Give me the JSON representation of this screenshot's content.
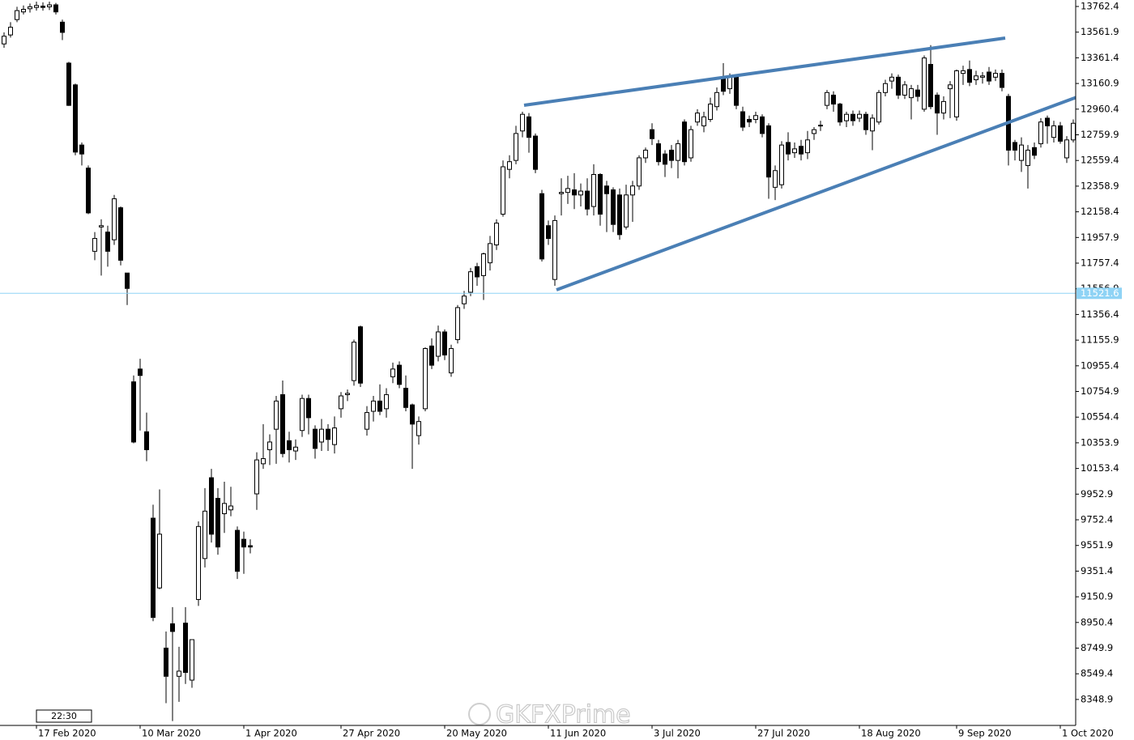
{
  "chart_data": {
    "type": "candlestick",
    "categories": [
      null,
      null,
      null,
      null,
      null,
      "17 Feb 2020",
      null,
      null,
      null,
      null,
      null,
      null,
      null,
      null,
      null,
      null,
      null,
      null,
      null,
      null,
      null,
      "10 Mar 2020",
      null,
      null,
      null,
      null,
      null,
      null,
      null,
      null,
      null,
      null,
      null,
      null,
      null,
      null,
      null,
      "1 Apr 2020",
      null,
      null,
      null,
      null,
      null,
      null,
      null,
      null,
      null,
      null,
      null,
      null,
      null,
      null,
      "27 Apr 2020",
      null,
      null,
      null,
      null,
      null,
      null,
      null,
      null,
      null,
      null,
      null,
      null,
      null,
      null,
      null,
      "20 May 2020",
      null,
      null,
      null,
      null,
      null,
      null,
      null,
      null,
      null,
      null,
      null,
      null,
      null,
      null,
      null,
      "11 Jun 2020",
      null,
      null,
      null,
      null,
      null,
      null,
      null,
      null,
      null,
      null,
      null,
      null,
      null,
      null,
      null,
      "3 Jul 2020",
      null,
      null,
      null,
      null,
      null,
      null,
      null,
      null,
      null,
      null,
      null,
      null,
      null,
      null,
      null,
      "27 Jul 2020",
      null,
      null,
      null,
      null,
      null,
      null,
      null,
      null,
      null,
      null,
      null,
      null,
      null,
      null,
      null,
      "18 Aug 2020",
      null,
      null,
      null,
      null,
      null,
      null,
      null,
      null,
      null,
      null,
      null,
      null,
      null,
      null,
      "9 Sep 2020",
      null,
      null,
      null,
      null,
      null,
      null,
      null,
      null,
      null,
      null,
      null,
      null,
      null,
      null,
      null,
      "1 Oct 2020",
      null,
      null
    ],
    "open": [
      13470,
      13540,
      13660,
      13720,
      13745,
      13755,
      13765,
      13760,
      13775,
      13640,
      13320,
      13150,
      12680,
      12500,
      11850,
      12040,
      12000,
      11940,
      12190,
      11680,
      10830,
      10930,
      10440,
      9765,
      9220,
      8750,
      8940,
      8530,
      8945,
      8500,
      9130,
      9450,
      10081,
      9920,
      9800,
      9830,
      9670,
      9600,
      9550,
      9955,
      10190,
      10300,
      10460,
      10730,
      10370,
      10290,
      10450,
      10700,
      10460,
      10360,
      10460,
      10340,
      10620,
      10730,
      10840,
      11260,
      10460,
      10600,
      10680,
      10620,
      10870,
      10960,
      10780,
      10650,
      10410,
      10620,
      11110,
      11030,
      11220,
      10900,
      11160,
      11440,
      11530,
      11730,
      11660,
      11760,
      11900,
      12140,
      12490,
      12560,
      12790,
      12900,
      12750,
      12300,
      12050,
      11630,
      12300,
      12310,
      12330,
      12290,
      12320,
      12200,
      12450,
      12360,
      12330,
      12290,
      12040,
      12290,
      12360,
      12580,
      12800,
      12690,
      12610,
      12640,
      12560,
      12860,
      12580,
      12860,
      12830,
      12880,
      12980,
      13210,
      13120,
      13210,
      12940,
      12880,
      12880,
      12900,
      12830,
      12350,
      12370,
      12700,
      12620,
      12670,
      12620,
      12770,
      12830,
      12990,
      13070,
      13000,
      12870,
      12920,
      12890,
      12920,
      12790,
      12860,
      13090,
      13180,
      13210,
      13070,
      13050,
      13110,
      12960,
      13310,
      13070,
      12930,
      13120,
      12900,
      13240,
      13270,
      13190,
      13210,
      13250,
      13210,
      13240,
      13060,
      12700,
      12560,
      12520,
      12660,
      12690,
      12890,
      12740,
      12830,
      12580,
      12720
    ],
    "high": [
      13560,
      13640,
      13760,
      13770,
      13785,
      13800,
      13795,
      13800,
      13790,
      13660,
      13330,
      13160,
      12700,
      12520,
      12000,
      12100,
      12050,
      12290,
      12200,
      11680,
      10880,
      11010,
      10590,
      9870,
      9990,
      8880,
      9070,
      8760,
      9070,
      8816,
      9740,
      10000,
      10150,
      10000,
      10050,
      10010,
      9700,
      9660,
      9600,
      10280,
      10500,
      10420,
      10720,
      10840,
      10440,
      10380,
      10730,
      10730,
      10490,
      10540,
      10500,
      10560,
      10750,
      10770,
      11160,
      11270,
      10640,
      10720,
      10810,
      10780,
      10980,
      10990,
      10880,
      10660,
      10560,
      11100,
      11170,
      11270,
      11240,
      11120,
      11430,
      11540,
      11720,
      11760,
      11840,
      11970,
      12100,
      12560,
      12600,
      12830,
      12940,
      12930,
      12770,
      12330,
      12090,
      12130,
      12420,
      12440,
      12460,
      12380,
      12420,
      12530,
      12460,
      12400,
      12350,
      12340,
      12370,
      12400,
      12600,
      12660,
      12850,
      12720,
      12640,
      12680,
      12720,
      12880,
      12830,
      12960,
      12940,
      13050,
      13130,
      13320,
      13240,
      13230,
      12980,
      12910,
      12940,
      12920,
      12850,
      12520,
      12710,
      12780,
      12700,
      12720,
      12790,
      12820,
      12870,
      13110,
      13100,
      13010,
      12940,
      12950,
      12950,
      12940,
      12920,
      13110,
      13190,
      13240,
      13230,
      13180,
      13150,
      13150,
      13380,
      13460,
      13090,
      13060,
      13180,
      13270,
      13300,
      13340,
      13260,
      13250,
      13290,
      13270,
      13270,
      13080,
      12720,
      12740,
      12680,
      12700,
      12890,
      12910,
      12870,
      12860,
      12750,
      12880
    ],
    "low": [
      13440,
      13520,
      13640,
      13700,
      13715,
      13730,
      13730,
      13735,
      13700,
      13500,
      12985,
      12600,
      12520,
      12140,
      11780,
      11660,
      11730,
      11900,
      11740,
      11430,
      10350,
      10450,
      10210,
      8960,
      9210,
      8320,
      8180,
      8330,
      8470,
      8440,
      9080,
      9380,
      9575,
      9480,
      9650,
      9780,
      9290,
      9330,
      9490,
      9830,
      10150,
      10180,
      10190,
      10240,
      10200,
      10220,
      10400,
      10420,
      10230,
      10290,
      10290,
      10270,
      10550,
      10680,
      10800,
      10790,
      10410,
      10520,
      10570,
      10550,
      10820,
      10780,
      10600,
      10150,
      10340,
      10600,
      10930,
      10990,
      11000,
      10870,
      11130,
      11400,
      11500,
      11580,
      11470,
      11700,
      11860,
      12120,
      12420,
      12530,
      12740,
      12620,
      12460,
      11770,
      11900,
      11580,
      12130,
      12220,
      12180,
      12200,
      12130,
      12130,
      12050,
      12000,
      12000,
      11940,
      12020,
      12080,
      12330,
      12540,
      12680,
      12520,
      12430,
      12500,
      12420,
      12520,
      12550,
      12830,
      12780,
      12860,
      12950,
      13070,
      13080,
      12960,
      12790,
      12820,
      12850,
      12740,
      12260,
      12250,
      12340,
      12560,
      12580,
      12560,
      12570,
      12720,
      12790,
      12960,
      12940,
      12830,
      12820,
      12830,
      12860,
      12760,
      12640,
      12840,
      13060,
      13120,
      13040,
      13040,
      12880,
      13020,
      12940,
      12960,
      12760,
      12880,
      12890,
      12870,
      13150,
      13140,
      13150,
      13160,
      13150,
      13180,
      13100,
      12520,
      12560,
      12470,
      12340,
      12570,
      12660,
      12690,
      12700,
      12690,
      12540,
      12700
    ],
    "close": [
      13530,
      13600,
      13730,
      13740,
      13760,
      13770,
      13755,
      13775,
      13720,
      13560,
      12990,
      12625,
      12610,
      12150,
      11950,
      12050,
      11850,
      12260,
      11780,
      11560,
      10360,
      10880,
      10300,
      8990,
      9640,
      8530,
      8880,
      8570,
      8560,
      8816,
      9700,
      9820,
      9640,
      9540,
      9880,
      9860,
      9350,
      9540,
      9540,
      10220,
      10230,
      10360,
      10680,
      10270,
      10300,
      10320,
      10700,
      10550,
      10310,
      10460,
      10380,
      10470,
      10720,
      10740,
      11140,
      10820,
      10590,
      10680,
      10600,
      10730,
      10930,
      10810,
      10630,
      10500,
      10520,
      11090,
      10960,
      11220,
      11040,
      11090,
      11410,
      11500,
      11690,
      11650,
      11830,
      11910,
      12070,
      12510,
      12550,
      12770,
      12920,
      12740,
      12490,
      11790,
      11950,
      12090,
      12310,
      12340,
      12290,
      12320,
      12180,
      12450,
      12140,
      12300,
      12060,
      11980,
      12290,
      12360,
      12580,
      12640,
      12730,
      12550,
      12530,
      12560,
      12690,
      12550,
      12800,
      12930,
      12900,
      13000,
      13090,
      13100,
      13210,
      12990,
      12820,
      12860,
      12910,
      12770,
      12430,
      12480,
      12680,
      12610,
      12650,
      12610,
      12720,
      12800,
      12835,
      13090,
      13000,
      12860,
      12920,
      12870,
      12920,
      12800,
      12890,
      13090,
      13160,
      13210,
      13070,
      13150,
      13120,
      13060,
      13360,
      12980,
      12930,
      13020,
      13150,
      13260,
      13260,
      13170,
      13220,
      13220,
      13180,
      13240,
      13130,
      12640,
      12640,
      12680,
      12640,
      12600,
      12860,
      12830,
      12830,
      12710,
      12720,
      12850
    ],
    "ylim": [
      8146,
      13813
    ],
    "yticks": [
      13762.4,
      13561.9,
      13361.4,
      13160.9,
      12960.4,
      12759.9,
      12559.4,
      12358.9,
      12158.4,
      11957.9,
      11757.4,
      11556.9,
      11356.4,
      11155.9,
      10955.4,
      10754.9,
      10554.4,
      10353.9,
      10153.4,
      9952.9,
      9752.4,
      9551.9,
      9351.4,
      9150.9,
      8950.4,
      8749.9,
      8549.4,
      8348.9
    ],
    "current_price": 11521.6,
    "up_color": "#ffffff",
    "down_color": "#000000",
    "outline_color": "#000000",
    "price_line_color": "#8fd3f5",
    "time_tag": "22:30",
    "watermark": "GKFXPrime"
  }
}
